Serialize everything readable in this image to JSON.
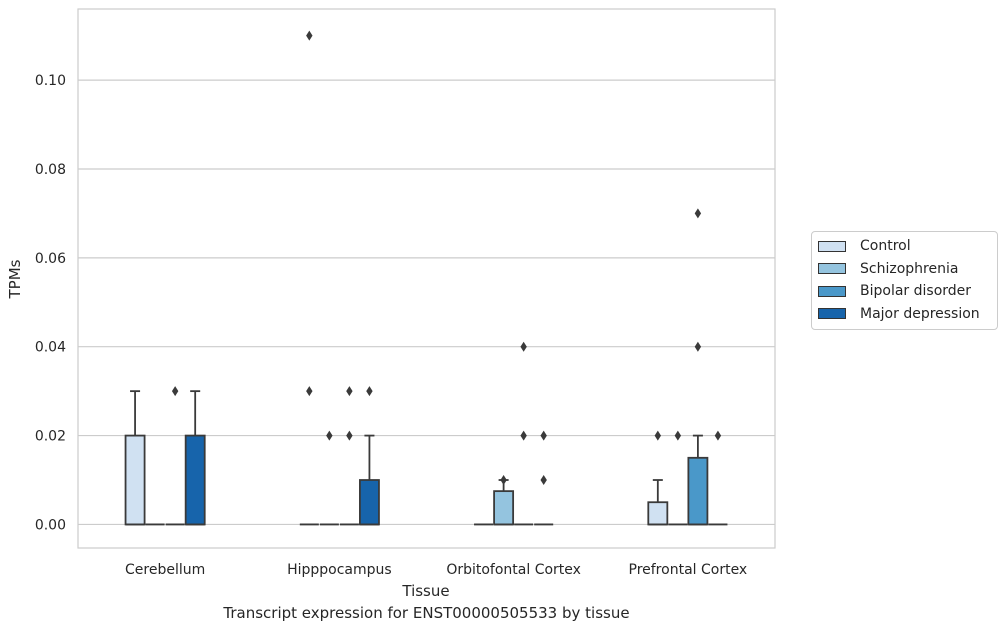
{
  "chart_data": {
    "type": "boxplot",
    "caption": "Transcript expression for ENST00000505533 by tissue",
    "xlabel": "Tissue",
    "ylabel": "TPMs",
    "ylim": [
      -0.0053,
      0.116
    ],
    "yticks": [
      0.0,
      0.02,
      0.04,
      0.06,
      0.08,
      0.1
    ],
    "ytick_labels": [
      "0.00",
      "0.02",
      "0.04",
      "0.06",
      "0.08",
      "0.10"
    ],
    "categories": [
      "Cerebellum",
      "Hipppocampus",
      "Orbitofontal Cortex",
      "Prefrontal Cortex"
    ],
    "grid": "horizontal",
    "legend_position": "right",
    "series": [
      {
        "name": "Control",
        "color": "#d0e1f2",
        "boxes": [
          {
            "q1": 0.0,
            "median": 0.0,
            "q3": 0.02,
            "whisker_low": 0.0,
            "whisker_high": 0.03,
            "outliers": []
          },
          {
            "q1": 0.0,
            "median": 0.0,
            "q3": 0.0,
            "whisker_low": 0.0,
            "whisker_high": 0.0,
            "outliers": [
              0.11,
              0.03
            ]
          },
          {
            "q1": 0.0,
            "median": 0.0,
            "q3": 0.0,
            "whisker_low": 0.0,
            "whisker_high": 0.0,
            "outliers": []
          },
          {
            "q1": 0.0,
            "median": 0.0,
            "q3": 0.005,
            "whisker_low": 0.0,
            "whisker_high": 0.01,
            "outliers": [
              0.02
            ]
          }
        ]
      },
      {
        "name": "Schizophrenia",
        "color": "#94c4df",
        "boxes": [
          {
            "q1": 0.0,
            "median": 0.0,
            "q3": 0.0,
            "whisker_low": 0.0,
            "whisker_high": 0.0,
            "outliers": []
          },
          {
            "q1": 0.0,
            "median": 0.0,
            "q3": 0.0,
            "whisker_low": 0.0,
            "whisker_high": 0.0,
            "outliers": [
              0.02
            ]
          },
          {
            "q1": 0.0,
            "median": 0.0,
            "q3": 0.0075,
            "whisker_low": 0.0,
            "whisker_high": 0.01,
            "outliers": [
              0.01
            ]
          },
          {
            "q1": 0.0,
            "median": 0.0,
            "q3": 0.0,
            "whisker_low": 0.0,
            "whisker_high": 0.0,
            "outliers": [
              0.02
            ]
          }
        ]
      },
      {
        "name": "Bipolar disorder",
        "color": "#4a98c9",
        "boxes": [
          {
            "q1": 0.0,
            "median": 0.0,
            "q3": 0.0,
            "whisker_low": 0.0,
            "whisker_high": 0.0,
            "outliers": [
              0.03
            ]
          },
          {
            "q1": 0.0,
            "median": 0.0,
            "q3": 0.0,
            "whisker_low": 0.0,
            "whisker_high": 0.0,
            "outliers": [
              0.03,
              0.02
            ]
          },
          {
            "q1": 0.0,
            "median": 0.0,
            "q3": 0.0,
            "whisker_low": 0.0,
            "whisker_high": 0.0,
            "outliers": [
              0.04,
              0.02
            ]
          },
          {
            "q1": 0.0,
            "median": 0.0,
            "q3": 0.015,
            "whisker_low": 0.0,
            "whisker_high": 0.02,
            "outliers": [
              0.07,
              0.04
            ]
          }
        ]
      },
      {
        "name": "Major depression",
        "color": "#1764ab",
        "boxes": [
          {
            "q1": 0.0,
            "median": 0.0,
            "q3": 0.02,
            "whisker_low": 0.0,
            "whisker_high": 0.03,
            "outliers": []
          },
          {
            "q1": 0.0,
            "median": 0.0,
            "q3": 0.01,
            "whisker_low": 0.0,
            "whisker_high": 0.02,
            "outliers": [
              0.03
            ]
          },
          {
            "q1": 0.0,
            "median": 0.0,
            "q3": 0.0,
            "whisker_low": 0.0,
            "whisker_high": 0.0,
            "outliers": [
              0.02,
              0.01
            ]
          },
          {
            "q1": 0.0,
            "median": 0.0,
            "q3": 0.0,
            "whisker_low": 0.0,
            "whisker_high": 0.0,
            "outliers": [
              0.02
            ]
          }
        ]
      }
    ]
  }
}
